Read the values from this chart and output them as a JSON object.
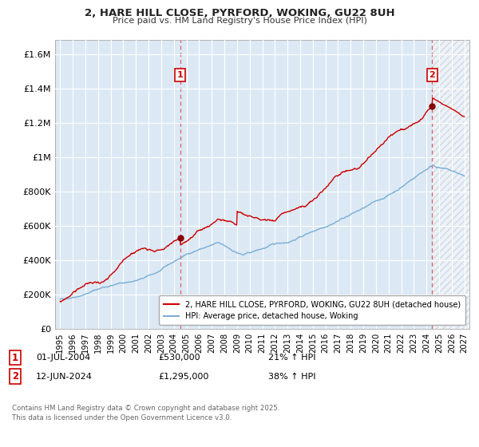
{
  "title": "2, HARE HILL CLOSE, PYRFORD, WOKING, GU22 8UH",
  "subtitle": "Price paid vs. HM Land Registry's House Price Index (HPI)",
  "red_label": "2, HARE HILL CLOSE, PYRFORD, WOKING, GU22 8UH (detached house)",
  "blue_label": "HPI: Average price, detached house, Woking",
  "annotation1_date": "01-JUL-2004",
  "annotation1_price": "£530,000",
  "annotation1_hpi": "21% ↑ HPI",
  "annotation2_date": "12-JUN-2024",
  "annotation2_price": "£1,295,000",
  "annotation2_hpi": "38% ↑ HPI",
  "vline1_x": 2004.5,
  "vline2_x": 2024.45,
  "ylim_min": 0,
  "ylim_max": 1680000,
  "xlim_min": 1994.6,
  "xlim_max": 2027.4,
  "bg_color": "#ffffff",
  "plot_bg_color": "#dce9f5",
  "grid_color": "#ffffff",
  "red_color": "#cc0000",
  "blue_color": "#7aaed6",
  "vline_color": "#e06060",
  "footer_text": "Contains HM Land Registry data © Crown copyright and database right 2025.\nThis data is licensed under the Open Government Licence v3.0.",
  "yticks": [
    0,
    200000,
    400000,
    600000,
    800000,
    1000000,
    1200000,
    1400000,
    1600000
  ],
  "ytick_labels": [
    "£0",
    "£200K",
    "£400K",
    "£600K",
    "£800K",
    "£1M",
    "£1.2M",
    "£1.4M",
    "£1.6M"
  ],
  "xticks": [
    1995,
    1996,
    1997,
    1998,
    1999,
    2000,
    2001,
    2002,
    2003,
    2004,
    2005,
    2006,
    2007,
    2008,
    2009,
    2010,
    2011,
    2012,
    2013,
    2014,
    2015,
    2016,
    2017,
    2018,
    2019,
    2020,
    2021,
    2022,
    2023,
    2024,
    2025,
    2026,
    2027
  ]
}
